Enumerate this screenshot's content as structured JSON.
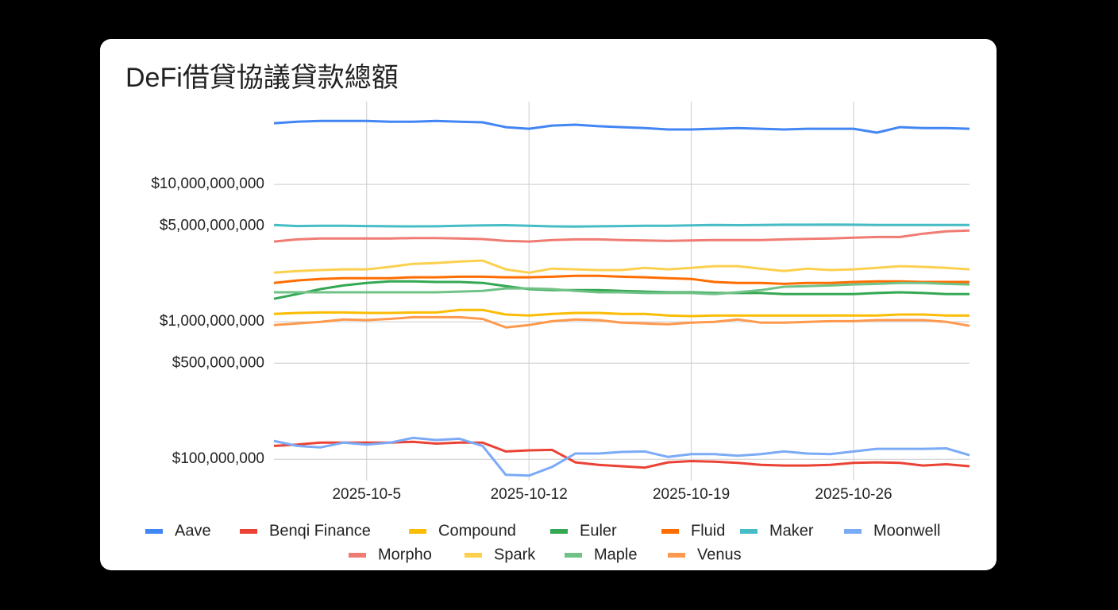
{
  "chart_data": {
    "type": "line",
    "title": "DeFi借貸協議貸款總額",
    "y_scale": "log",
    "grid": true,
    "legend": "bottom",
    "x": [
      "2025-10-1",
      "2025-10-2",
      "2025-10-3",
      "2025-10-4",
      "2025-10-5",
      "2025-10-6",
      "2025-10-7",
      "2025-10-8",
      "2025-10-9",
      "2025-10-10",
      "2025-10-11",
      "2025-10-12",
      "2025-10-13",
      "2025-10-14",
      "2025-10-15",
      "2025-10-16",
      "2025-10-17",
      "2025-10-18",
      "2025-10-19",
      "2025-10-20",
      "2025-10-21",
      "2025-10-22",
      "2025-10-23",
      "2025-10-24",
      "2025-10-25",
      "2025-10-26",
      "2025-10-27",
      "2025-10-28",
      "2025-10-29",
      "2025-10-30",
      "2025-10-31"
    ],
    "xticks": [
      "2025-10-5",
      "2025-10-12",
      "2025-10-19",
      "2025-10-26"
    ],
    "ylim": [
      70000000,
      40000000000
    ],
    "yticks": [
      {
        "value": 100000000,
        "label": "$100,000,000"
      },
      {
        "value": 500000000,
        "label": "$500,000,000"
      },
      {
        "value": 1000000000,
        "label": "$1,000,000,000"
      },
      {
        "value": 5000000000,
        "label": "$5,000,000,000"
      },
      {
        "value": 10000000000,
        "label": "$10,000,000,000"
      }
    ],
    "series": [
      {
        "name": "Aave",
        "color": "#4285f4",
        "values": [
          27900000000.0,
          28600000000.0,
          29000000000.0,
          29000000000.0,
          29000000000.0,
          28600000000.0,
          28600000000.0,
          29000000000.0,
          28600000000.0,
          28300000000.0,
          26100000000.0,
          25400000000.0,
          26800000000.0,
          27200000000.0,
          26500000000.0,
          26100000000.0,
          25700000000.0,
          25100000000.0,
          25100000000.0,
          25400000000.0,
          25700000000.0,
          25400000000.0,
          25100000000.0,
          25400000000.0,
          25400000000.0,
          25400000000.0,
          23800000000.0,
          26100000000.0,
          25700000000.0,
          25700000000.0,
          25400000000.0
        ]
      },
      {
        "name": "Benqi Finance",
        "color": "#ea4335",
        "values": [
          125000000.0,
          128000000.0,
          132000000.0,
          132000000.0,
          132000000.0,
          132000000.0,
          134000000.0,
          130000000.0,
          132000000.0,
          132000000.0,
          114000000.0,
          116000000.0,
          117000000.0,
          95000000.0,
          91000000.0,
          89000000.0,
          87000000.0,
          95000000.0,
          97000000.0,
          96000000.0,
          94000000.0,
          91000000.0,
          90000000.0,
          90000000.0,
          91000000.0,
          94000000.0,
          95000000.0,
          94000000.0,
          90000000.0,
          92000000.0,
          89000000.0
        ]
      },
      {
        "name": "Compound",
        "color": "#fbbc04",
        "values": [
          1140000000.0,
          1160000000.0,
          1170000000.0,
          1170000000.0,
          1160000000.0,
          1160000000.0,
          1170000000.0,
          1170000000.0,
          1220000000.0,
          1220000000.0,
          1130000000.0,
          1110000000.0,
          1140000000.0,
          1160000000.0,
          1160000000.0,
          1140000000.0,
          1140000000.0,
          1110000000.0,
          1100000000.0,
          1110000000.0,
          1110000000.0,
          1110000000.0,
          1110000000.0,
          1110000000.0,
          1110000000.0,
          1110000000.0,
          1110000000.0,
          1130000000.0,
          1130000000.0,
          1110000000.0,
          1110000000.0
        ]
      },
      {
        "name": "Euler",
        "color": "#34a853",
        "values": [
          1470000000.0,
          1590000000.0,
          1730000000.0,
          1840000000.0,
          1920000000.0,
          1970000000.0,
          1970000000.0,
          1950000000.0,
          1950000000.0,
          1920000000.0,
          1820000000.0,
          1730000000.0,
          1700000000.0,
          1700000000.0,
          1700000000.0,
          1680000000.0,
          1660000000.0,
          1640000000.0,
          1640000000.0,
          1620000000.0,
          1620000000.0,
          1620000000.0,
          1590000000.0,
          1590000000.0,
          1590000000.0,
          1590000000.0,
          1620000000.0,
          1640000000.0,
          1620000000.0,
          1590000000.0,
          1590000000.0
        ]
      },
      {
        "name": "Fluid",
        "color": "#ff6d01",
        "values": [
          1920000000.0,
          2000000000.0,
          2050000000.0,
          2080000000.0,
          2080000000.0,
          2080000000.0,
          2110000000.0,
          2110000000.0,
          2130000000.0,
          2130000000.0,
          2110000000.0,
          2110000000.0,
          2130000000.0,
          2160000000.0,
          2160000000.0,
          2130000000.0,
          2110000000.0,
          2080000000.0,
          2050000000.0,
          1950000000.0,
          1920000000.0,
          1920000000.0,
          1890000000.0,
          1920000000.0,
          1920000000.0,
          1950000000.0,
          1970000000.0,
          1970000000.0,
          1950000000.0,
          1950000000.0,
          1950000000.0
        ]
      },
      {
        "name": "Maker",
        "color": "#46bdc6",
        "values": [
          5070000000.0,
          4980000000.0,
          5000000000.0,
          5000000000.0,
          4980000000.0,
          4960000000.0,
          4950000000.0,
          4960000000.0,
          5000000000.0,
          5030000000.0,
          5050000000.0,
          5000000000.0,
          4950000000.0,
          4940000000.0,
          4960000000.0,
          4980000000.0,
          5000000000.0,
          5000000000.0,
          5030000000.0,
          5070000000.0,
          5050000000.0,
          5070000000.0,
          5090000000.0,
          5090000000.0,
          5100000000.0,
          5090000000.0,
          5070000000.0,
          5070000000.0,
          5070000000.0,
          5070000000.0,
          5070000000.0
        ]
      },
      {
        "name": "Moonwell",
        "color": "#7baaf7",
        "values": [
          136000000.0,
          125000000.0,
          122000000.0,
          132000000.0,
          128000000.0,
          132000000.0,
          143000000.0,
          138000000.0,
          141000000.0,
          125000000.0,
          77000000.0,
          76000000.0,
          88000000.0,
          110000000.0,
          110000000.0,
          113000000.0,
          114000000.0,
          104000000.0,
          109000000.0,
          109000000.0,
          106000000.0,
          109000000.0,
          114000000.0,
          110000000.0,
          109000000.0,
          114000000.0,
          119000000.0,
          119000000.0,
          119000000.0,
          120000000.0,
          107000000.0
        ]
      },
      {
        "name": "Morpho",
        "color": "#f07b72",
        "values": [
          3840000000.0,
          3980000000.0,
          4040000000.0,
          4040000000.0,
          4040000000.0,
          4040000000.0,
          4070000000.0,
          4070000000.0,
          4040000000.0,
          4000000000.0,
          3880000000.0,
          3840000000.0,
          3940000000.0,
          3980000000.0,
          3980000000.0,
          3940000000.0,
          3910000000.0,
          3880000000.0,
          3910000000.0,
          3940000000.0,
          3940000000.0,
          3940000000.0,
          3980000000.0,
          4010000000.0,
          4040000000.0,
          4100000000.0,
          4140000000.0,
          4140000000.0,
          4380000000.0,
          4550000000.0,
          4620000000.0
        ]
      },
      {
        "name": "Spark",
        "color": "#fcd04f",
        "values": [
          2280000000.0,
          2340000000.0,
          2380000000.0,
          2410000000.0,
          2410000000.0,
          2510000000.0,
          2640000000.0,
          2680000000.0,
          2750000000.0,
          2790000000.0,
          2410000000.0,
          2280000000.0,
          2440000000.0,
          2410000000.0,
          2380000000.0,
          2380000000.0,
          2470000000.0,
          2410000000.0,
          2470000000.0,
          2540000000.0,
          2540000000.0,
          2440000000.0,
          2340000000.0,
          2440000000.0,
          2380000000.0,
          2410000000.0,
          2470000000.0,
          2540000000.0,
          2510000000.0,
          2470000000.0,
          2410000000.0
        ]
      },
      {
        "name": "Maple",
        "color": "#71c287",
        "values": [
          1640000000.0,
          1640000000.0,
          1640000000.0,
          1640000000.0,
          1640000000.0,
          1640000000.0,
          1640000000.0,
          1640000000.0,
          1660000000.0,
          1680000000.0,
          1750000000.0,
          1750000000.0,
          1730000000.0,
          1680000000.0,
          1640000000.0,
          1640000000.0,
          1620000000.0,
          1620000000.0,
          1620000000.0,
          1590000000.0,
          1640000000.0,
          1700000000.0,
          1800000000.0,
          1820000000.0,
          1840000000.0,
          1870000000.0,
          1890000000.0,
          1920000000.0,
          1920000000.0,
          1890000000.0,
          1870000000.0
        ]
      },
      {
        "name": "Venus",
        "color": "#ff994d",
        "values": [
          948000000.0,
          974000000.0,
          1000000000.0,
          1040000000.0,
          1030000000.0,
          1050000000.0,
          1080000000.0,
          1080000000.0,
          1080000000.0,
          1050000000.0,
          911000000.0,
          948000000.0,
          1010000000.0,
          1040000000.0,
          1030000000.0,
          987000000.0,
          974000000.0,
          961000000.0,
          987000000.0,
          1000000000.0,
          1040000000.0,
          987000000.0,
          987000000.0,
          1000000000.0,
          1010000000.0,
          1010000000.0,
          1030000000.0,
          1030000000.0,
          1030000000.0,
          1000000000.0,
          936000000.0
        ]
      }
    ]
  }
}
